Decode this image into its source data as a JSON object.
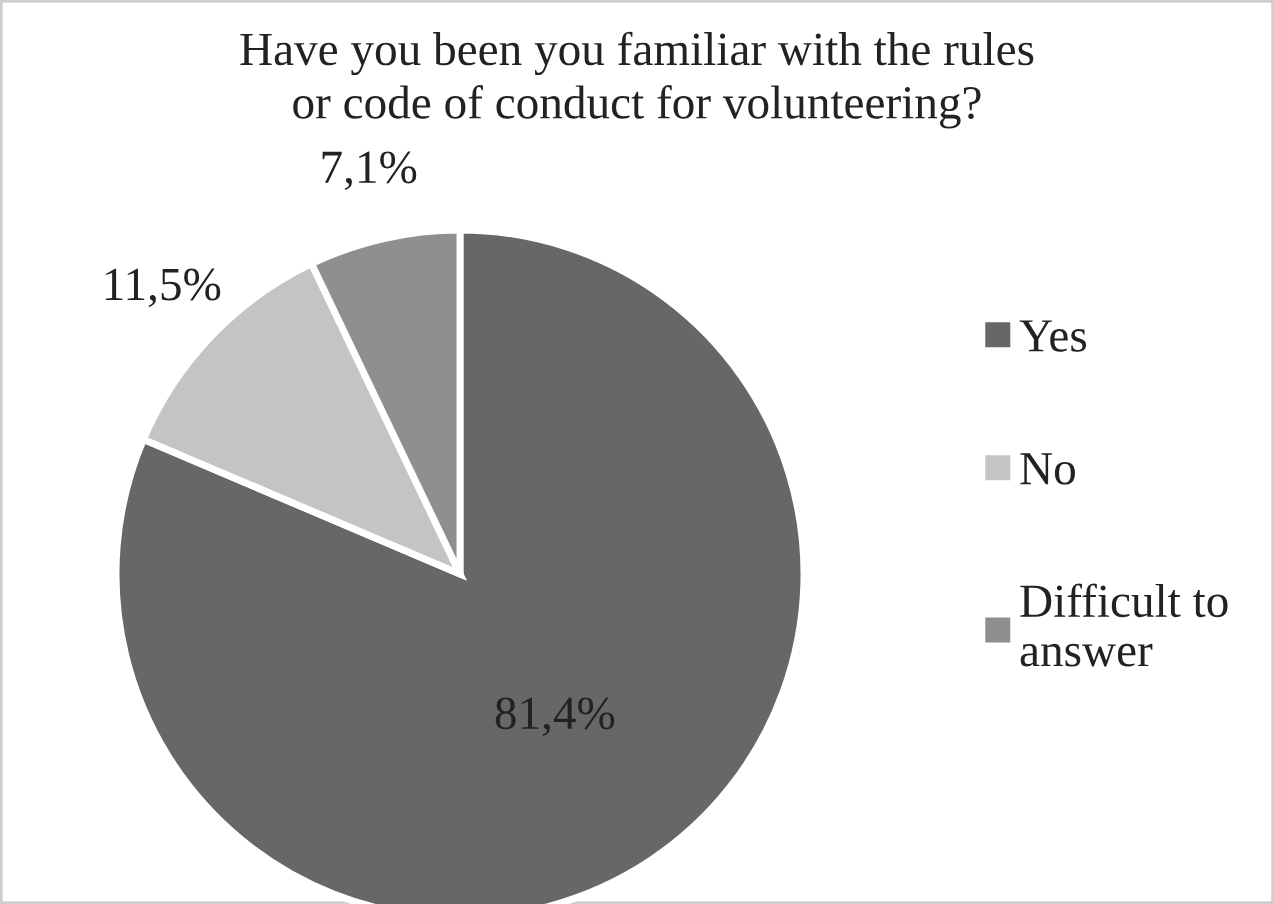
{
  "chart_data": {
    "type": "pie",
    "title": "Have you been you familiar with the rules\nor code of conduct for volunteering?",
    "categories": [
      "Yes",
      "No",
      "Difficult to\nanswer"
    ],
    "values": [
      81.4,
      11.5,
      7.1
    ],
    "value_labels": [
      "81,4%",
      "11,5%",
      "7,1%"
    ],
    "colors": [
      "#676767",
      "#c4c4c4",
      "#8f8f8f"
    ],
    "legend": "right"
  }
}
